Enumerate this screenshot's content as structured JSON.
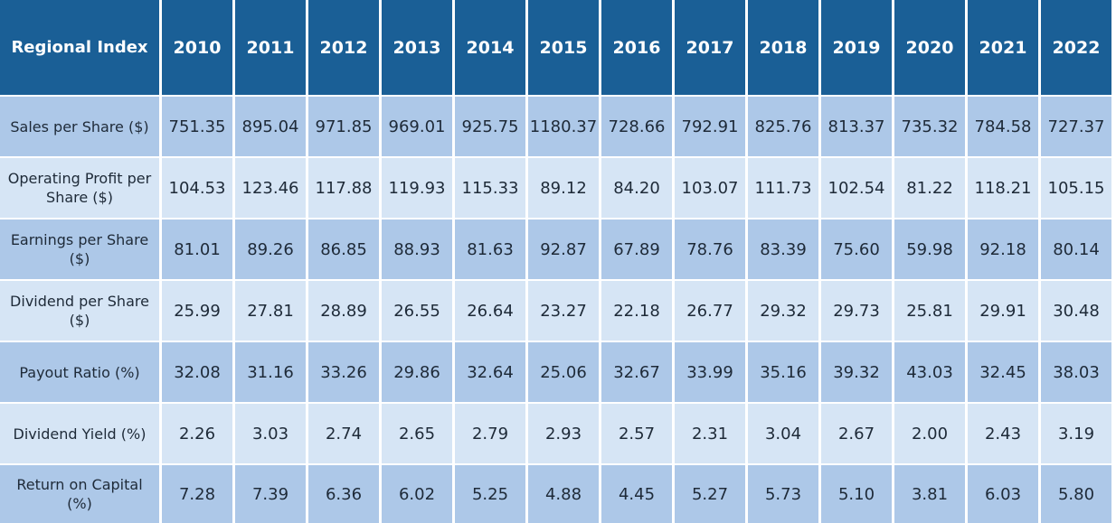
{
  "chart_data": {
    "type": "table",
    "header_label": "Regional Index",
    "columns": [
      "2010",
      "2011",
      "2012",
      "2013",
      "2014",
      "2015",
      "2016",
      "2017",
      "2018",
      "2019",
      "2020",
      "2021",
      "2022"
    ],
    "rows": [
      {
        "label": "Sales per Share ($)",
        "values": [
          "751.35",
          "895.04",
          "971.85",
          "969.01",
          "925.75",
          "1180.37",
          "728.66",
          "792.91",
          "825.76",
          "813.37",
          "735.32",
          "784.58",
          "727.37"
        ]
      },
      {
        "label": "Operating Profit per Share ($)",
        "values": [
          "104.53",
          "123.46",
          "117.88",
          "119.93",
          "115.33",
          "89.12",
          "84.20",
          "103.07",
          "111.73",
          "102.54",
          "81.22",
          "118.21",
          "105.15"
        ]
      },
      {
        "label": "Earnings per Share ($)",
        "values": [
          "81.01",
          "89.26",
          "86.85",
          "88.93",
          "81.63",
          "92.87",
          "67.89",
          "78.76",
          "83.39",
          "75.60",
          "59.98",
          "92.18",
          "80.14"
        ]
      },
      {
        "label": "Dividend per Share ($)",
        "values": [
          "25.99",
          "27.81",
          "28.89",
          "26.55",
          "26.64",
          "23.27",
          "22.18",
          "26.77",
          "29.32",
          "29.73",
          "25.81",
          "29.91",
          "30.48"
        ]
      },
      {
        "label": "Payout Ratio (%)",
        "values": [
          "32.08",
          "31.16",
          "33.26",
          "29.86",
          "32.64",
          "25.06",
          "32.67",
          "33.99",
          "35.16",
          "39.32",
          "43.03",
          "32.45",
          "38.03"
        ]
      },
      {
        "label": "Dividend Yield (%)",
        "values": [
          "2.26",
          "3.03",
          "2.74",
          "2.65",
          "2.79",
          "2.93",
          "2.57",
          "2.31",
          "3.04",
          "2.67",
          "2.00",
          "2.43",
          "3.19"
        ]
      },
      {
        "label": "Return on Capital (%)",
        "values": [
          "7.28",
          "7.39",
          "6.36",
          "6.02",
          "5.25",
          "4.88",
          "4.45",
          "5.27",
          "5.73",
          "5.10",
          "3.81",
          "6.03",
          "5.80"
        ]
      }
    ]
  },
  "colors": {
    "header_bg": "#1a5f96",
    "row_dark": "#adc8e8",
    "row_light": "#d6e5f5"
  }
}
